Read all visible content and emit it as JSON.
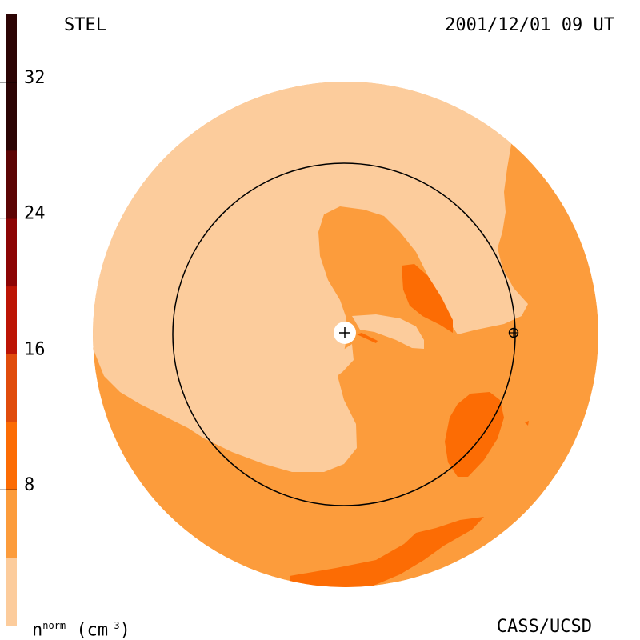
{
  "header": {
    "left_label": "STEL",
    "right_label": "2001/12/01 09 UT"
  },
  "footer": {
    "credit": "CASS/UCSD",
    "colorbar_unit_base": "n",
    "colorbar_unit_sup": "norm",
    "colorbar_unit_rest": " (cm",
    "colorbar_unit_exp": "-3",
    "colorbar_unit_close": ")"
  },
  "colors": {
    "level_0": "#fccc9c",
    "level_1": "#fc9c3c",
    "level_2": "#fc6c04",
    "level_3": "#e04c0c",
    "level_4": "#bc1404",
    "level_5": "#8c0404",
    "level_6": "#5c0404",
    "level_7": "#2c0404",
    "background": "#ffffff",
    "line": "#000000"
  },
  "chart_data": {
    "type": "heatmap",
    "description_source": "solar wind normalized density map",
    "colorbar": {
      "min": 0,
      "max": 36,
      "ticks": [
        8,
        16,
        24,
        32
      ],
      "tick_labels": [
        "8",
        "16",
        "24",
        "32"
      ],
      "levels": [
        {
          "from": 0,
          "to": 4,
          "color": "#fccc9c"
        },
        {
          "from": 4,
          "to": 8,
          "color": "#fc9c3c"
        },
        {
          "from": 8,
          "to": 12,
          "color": "#fc6c04"
        },
        {
          "from": 12,
          "to": 16,
          "color": "#e04c0c"
        },
        {
          "from": 16,
          "to": 20,
          "color": "#bc1404"
        },
        {
          "from": 20,
          "to": 24,
          "color": "#8c0404"
        },
        {
          "from": 24,
          "to": 28,
          "color": "#5c0404"
        },
        {
          "from": 28,
          "to": 36,
          "color": "#2c0404"
        }
      ]
    },
    "grid": false,
    "legend_position": "left"
  }
}
